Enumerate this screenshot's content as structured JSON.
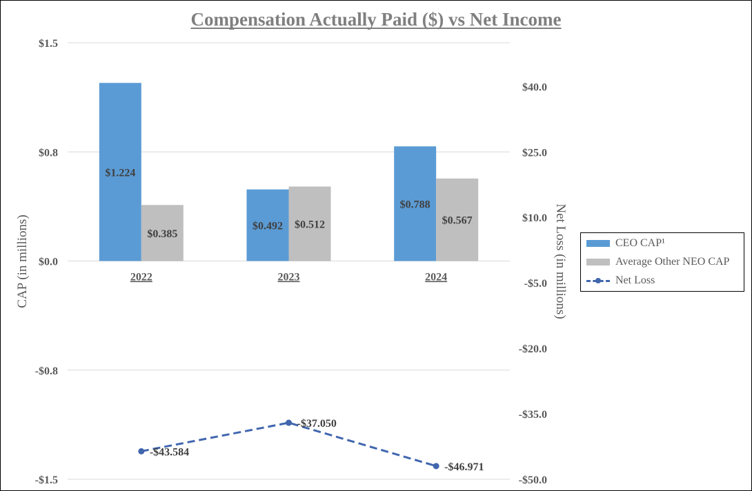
{
  "chart_data": {
    "type": "bar",
    "title": "Compensation Actually Paid ($) vs Net Income",
    "categories": [
      "2022",
      "2023",
      "2024"
    ],
    "series": [
      {
        "name": "CEO CAP¹",
        "kind": "bar",
        "axis": "left",
        "color": "#5b9bd5",
        "values": [
          1.224,
          0.492,
          0.788
        ],
        "labels": [
          "$1.224",
          "$0.492",
          "$0.788"
        ]
      },
      {
        "name": "Average Other NEO CAP",
        "kind": "bar",
        "axis": "left",
        "color": "#bfbfbf",
        "values": [
          0.385,
          0.512,
          0.567
        ],
        "labels": [
          "$0.385",
          "$0.512",
          "$0.567"
        ]
      },
      {
        "name": "Net Loss",
        "kind": "line",
        "style": "dashed-with-markers",
        "axis": "right",
        "color": "#4166ae",
        "values": [
          -43.584,
          -37.05,
          -46.971
        ],
        "labels": [
          "-$43.584",
          "-$37.050",
          "-$46.971"
        ]
      }
    ],
    "ylabel": "CAP (in millions)",
    "ylim": [
      -1.5,
      1.5
    ],
    "y_ticks": [
      1.5,
      0.75,
      0,
      -0.75,
      -1.5
    ],
    "y_tick_labels": [
      "$1.5",
      "$0.8",
      "$0.0",
      "-$0.8",
      "-$1.5"
    ],
    "y2label": "Net Loss (in millions)",
    "y2lim": [
      -50,
      50
    ],
    "y2_ticks": [
      40,
      25,
      10,
      -5,
      -20,
      -35,
      -50
    ],
    "y2_tick_labels": [
      "$40.0",
      "$25.0",
      "$10.0",
      "-$5.0",
      "-$20.0",
      "-$35.0",
      "-$50.0"
    ],
    "grid": true,
    "legend_position": "right"
  }
}
